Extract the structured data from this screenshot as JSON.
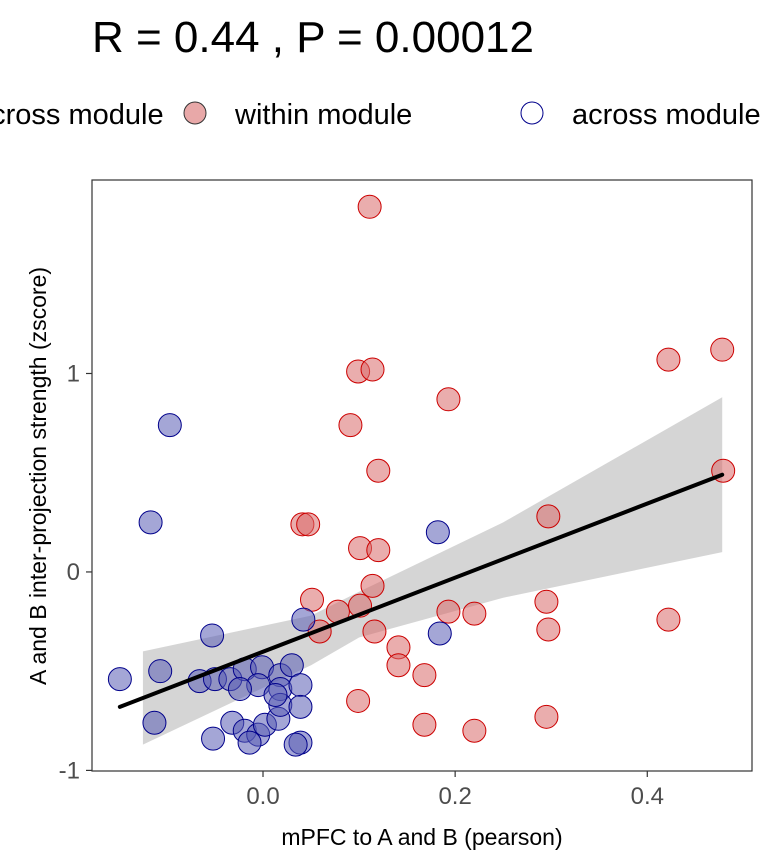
{
  "chart_data": {
    "type": "scatter",
    "title": "R = 0.44 , P = 0.00012",
    "xlabel": "mPFC to A and B (pearson)",
    "ylabel": "A and B inter-projection strength (zscore)",
    "xlim": [
      -0.178,
      0.509
    ],
    "ylim": [
      -1.003,
      1.975
    ],
    "xticks": [
      {
        "value": 0.0,
        "label": "0.0"
      },
      {
        "value": 0.2,
        "label": "0.2"
      },
      {
        "value": 0.4,
        "label": "0.4"
      }
    ],
    "yticks": [
      {
        "value": -1,
        "label": "-1"
      },
      {
        "value": 0,
        "label": "0"
      },
      {
        "value": 1,
        "label": "1"
      }
    ],
    "grid": false,
    "legend_position": "top",
    "legend": [
      {
        "label": "across module",
        "fill": "#e8a8a8",
        "stroke": "#333333"
      },
      {
        "label": "within module",
        "fill": "#e8a8a8",
        "stroke": "#333333"
      },
      {
        "label": "across module",
        "fill": "#ffffff",
        "stroke": "#00008b"
      }
    ],
    "series": [
      {
        "name": "within module",
        "fill": "#d96a6a",
        "stroke": "#cc0000",
        "points": [
          [
            0.111,
            1.84
          ],
          [
            0.099,
            1.01
          ],
          [
            0.114,
            1.02
          ],
          [
            0.091,
            0.74
          ],
          [
            0.193,
            0.87
          ],
          [
            0.12,
            0.51
          ],
          [
            0.422,
            1.07
          ],
          [
            0.478,
            1.12
          ],
          [
            0.479,
            0.51
          ],
          [
            0.297,
            0.28
          ],
          [
            0.041,
            0.24
          ],
          [
            0.047,
            0.24
          ],
          [
            0.101,
            0.12
          ],
          [
            0.12,
            0.11
          ],
          [
            0.114,
            -0.07
          ],
          [
            0.051,
            -0.14
          ],
          [
            0.059,
            -0.3
          ],
          [
            0.078,
            -0.2
          ],
          [
            0.101,
            -0.17
          ],
          [
            0.116,
            -0.3
          ],
          [
            0.193,
            -0.2
          ],
          [
            0.22,
            -0.21
          ],
          [
            0.295,
            -0.15
          ],
          [
            0.297,
            -0.29
          ],
          [
            0.141,
            -0.38
          ],
          [
            0.141,
            -0.47
          ],
          [
            0.168,
            -0.52
          ],
          [
            0.422,
            -0.24
          ],
          [
            0.099,
            -0.65
          ],
          [
            0.168,
            -0.77
          ],
          [
            0.22,
            -0.8
          ],
          [
            0.295,
            -0.73
          ]
        ]
      },
      {
        "name": "across module",
        "fill": "#5a5db5",
        "stroke": "#00008b",
        "points": [
          [
            -0.097,
            0.74
          ],
          [
            -0.117,
            0.25
          ],
          [
            0.182,
            0.2
          ],
          [
            0.042,
            -0.24
          ],
          [
            -0.053,
            -0.32
          ],
          [
            0.184,
            -0.31
          ],
          [
            -0.149,
            -0.54
          ],
          [
            -0.107,
            -0.5
          ],
          [
            -0.113,
            -0.76
          ],
          [
            -0.052,
            -0.84
          ],
          [
            -0.066,
            -0.55
          ],
          [
            -0.05,
            -0.54
          ],
          [
            -0.034,
            -0.54
          ],
          [
            -0.019,
            -0.49
          ],
          [
            -0.001,
            -0.48
          ],
          [
            0.018,
            -0.52
          ],
          [
            0.03,
            -0.47
          ],
          [
            -0.005,
            -0.57
          ],
          [
            0.018,
            -0.59
          ],
          [
            0.039,
            -0.57
          ],
          [
            -0.024,
            -0.59
          ],
          [
            -0.032,
            -0.76
          ],
          [
            -0.019,
            -0.8
          ],
          [
            -0.005,
            -0.82
          ],
          [
            0.002,
            -0.77
          ],
          [
            -0.014,
            -0.86
          ],
          [
            0.016,
            -0.74
          ],
          [
            0.018,
            -0.67
          ],
          [
            0.039,
            -0.68
          ],
          [
            0.039,
            -0.86
          ],
          [
            0.034,
            -0.87
          ],
          [
            0.013,
            -0.62
          ]
        ]
      }
    ],
    "regression": {
      "line": [
        [
          -0.149,
          -0.68
        ],
        [
          0.478,
          0.49
        ]
      ],
      "confidence_band": [
        [
          -0.125,
          -0.87,
          -0.4
        ],
        [
          0.05,
          -0.47,
          -0.22
        ],
        [
          0.1,
          -0.33,
          -0.1
        ],
        [
          0.25,
          -0.13,
          0.25
        ],
        [
          0.478,
          0.1,
          0.88
        ]
      ],
      "band_color": "#d3d3d3",
      "line_color": "#000000"
    }
  }
}
